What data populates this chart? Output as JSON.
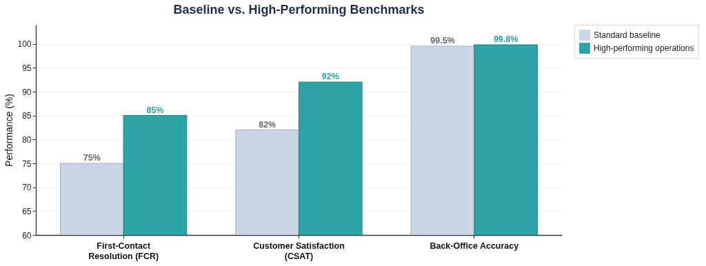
{
  "chart_data": {
    "type": "bar",
    "title": "Baseline vs. High-Performing Benchmarks",
    "ylabel": "Performance (%)",
    "categories": [
      "First-Contact Resolution (FCR)",
      "Customer Satisfaction (CSAT)",
      "Back-Office Accuracy"
    ],
    "series": [
      {
        "name": "Standard baseline",
        "color": "#c9d6e5",
        "values": [
          75,
          82,
          99.5
        ],
        "value_labels": [
          "75%",
          "82%",
          "99.5%"
        ]
      },
      {
        "name": "High-performing operations",
        "color": "#2ca3a6",
        "values": [
          85,
          92,
          99.8
        ],
        "value_labels": [
          "85%",
          "92%",
          "99.8%"
        ]
      }
    ],
    "ylim": [
      60,
      104
    ],
    "yticks": [
      60,
      65,
      70,
      75,
      80,
      85,
      90,
      95,
      100
    ],
    "grid": "y",
    "legend": "right"
  }
}
